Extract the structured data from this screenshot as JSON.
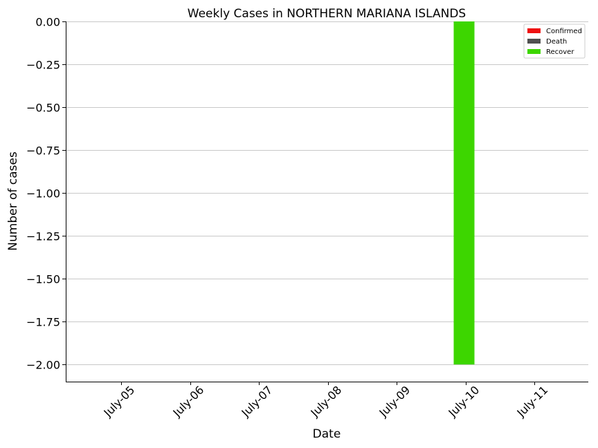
{
  "chart_data": {
    "type": "bar",
    "title": "Weekly Cases in NORTHERN MARIANA ISLANDS",
    "xlabel": "Date",
    "ylabel": "Number of cases",
    "categories": [
      "July-05",
      "July-06",
      "July-07",
      "July-08",
      "July-09",
      "July-10",
      "July-11"
    ],
    "series": [
      {
        "name": "Confirmed",
        "color": "#ee1111",
        "values": [
          0,
          0,
          0,
          0,
          0,
          0,
          0
        ]
      },
      {
        "name": "Death",
        "color": "#505050",
        "values": [
          0,
          0,
          0,
          0,
          0,
          0,
          0
        ]
      },
      {
        "name": "Recover",
        "color": "#3dd600",
        "values": [
          0,
          0,
          0,
          0,
          0,
          -2,
          0
        ]
      }
    ],
    "ylim": [
      -2.1,
      0
    ],
    "yticks": [
      0.0,
      -0.25,
      -0.5,
      -0.75,
      -1.0,
      -1.25,
      -1.5,
      -1.75,
      -2.0
    ],
    "ytick_labels": [
      "0.00",
      "−0.25",
      "−0.50",
      "−0.75",
      "−1.00",
      "−1.25",
      "−1.50",
      "−1.75",
      "−2.00"
    ],
    "grid": "horizontal",
    "legend_position": "top-right"
  }
}
